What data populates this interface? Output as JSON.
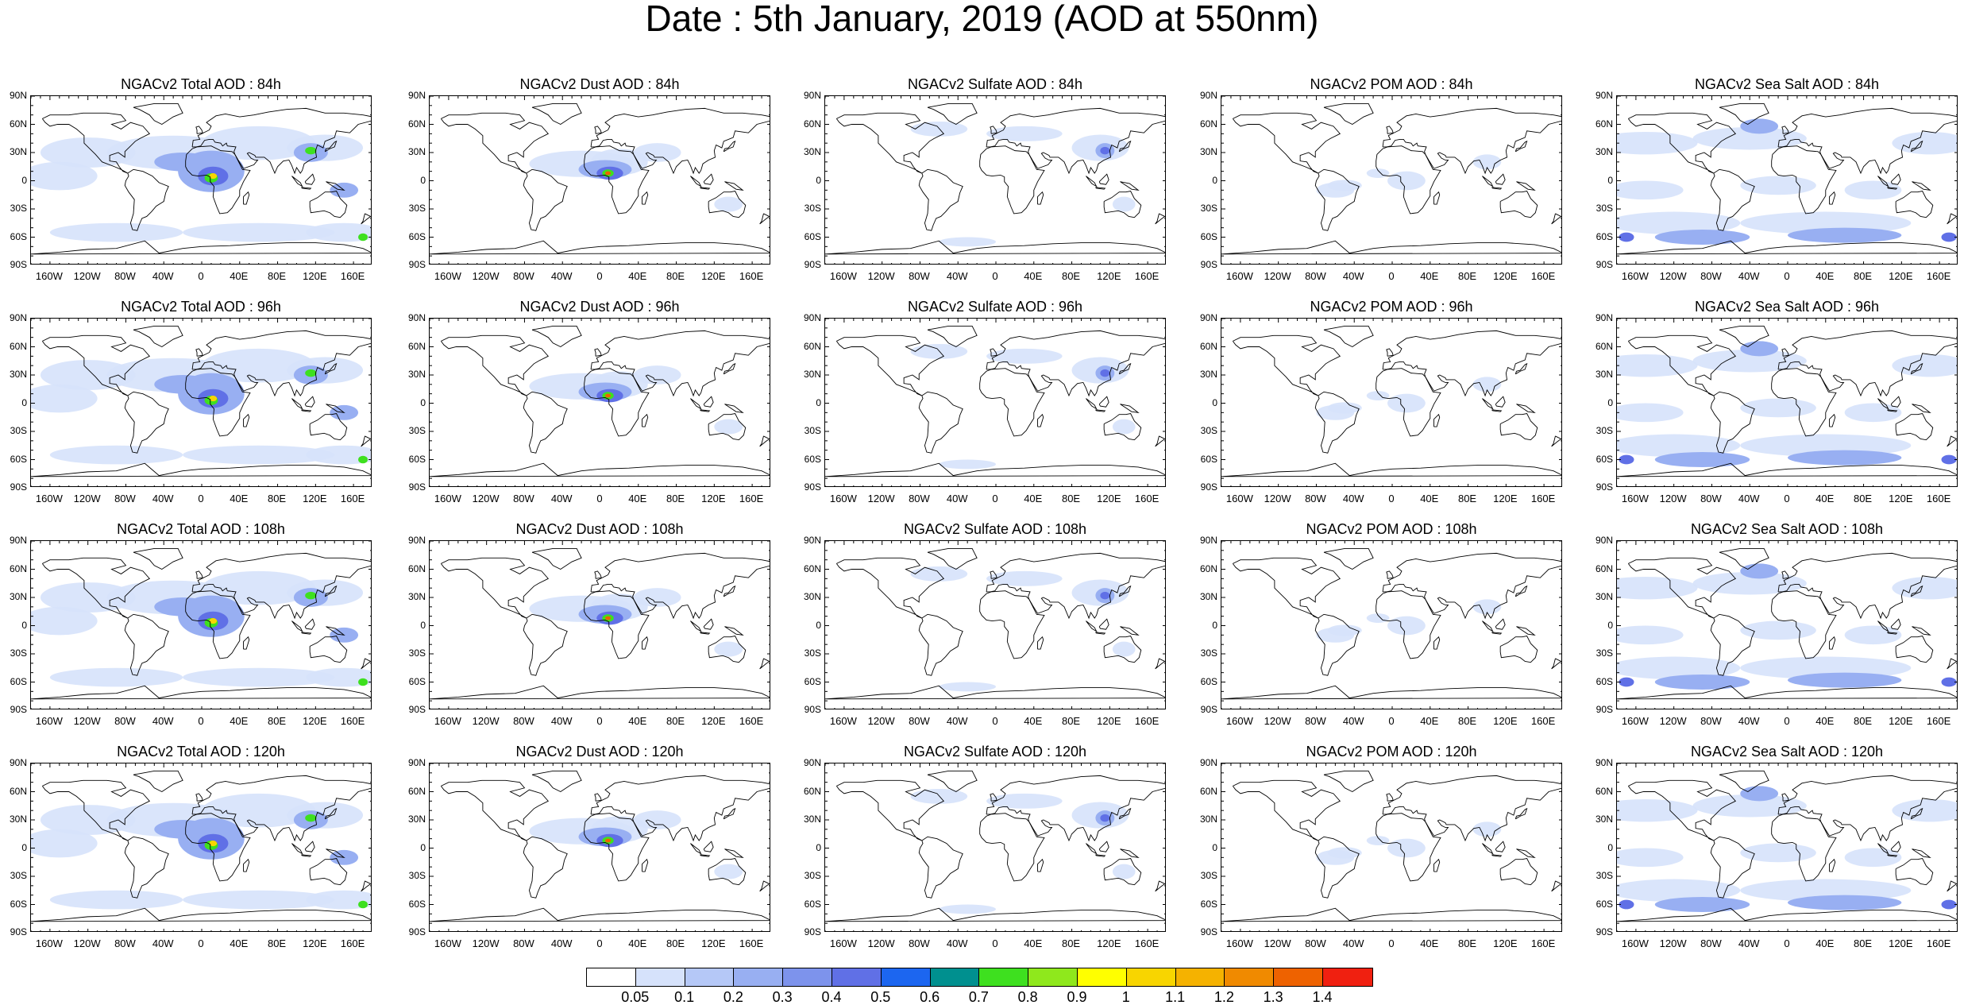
{
  "title": "Date : 5th January, 2019 (AOD at 550nm)",
  "panels": [
    [
      "NGACv2 Total AOD : 84h",
      "NGACv2 Dust AOD : 84h",
      "NGACv2 Sulfate AOD : 84h",
      "NGACv2 POM AOD : 84h",
      "NGACv2 Sea Salt AOD : 84h"
    ],
    [
      "NGACv2 Total AOD : 96h",
      "NGACv2 Dust AOD : 96h",
      "NGACv2 Sulfate AOD : 96h",
      "NGACv2 POM AOD : 96h",
      "NGACv2 Sea Salt AOD : 96h"
    ],
    [
      "NGACv2 Total AOD : 108h",
      "NGACv2 Dust AOD : 108h",
      "NGACv2 Sulfate AOD : 108h",
      "NGACv2 POM AOD : 108h",
      "NGACv2 Sea Salt AOD : 108h"
    ],
    [
      "NGACv2 Total AOD : 120h",
      "NGACv2 Dust AOD : 120h",
      "NGACv2 Sulfate AOD : 120h",
      "NGACv2 POM AOD : 120h",
      "NGACv2 Sea Salt  AOD : 120h"
    ]
  ],
  "lat_labels": [
    "90N",
    "60N",
    "30N",
    "0",
    "30S",
    "60S",
    "90S"
  ],
  "lon_labels": [
    "160W",
    "120W",
    "80W",
    "40W",
    "0",
    "40E",
    "80E",
    "120E",
    "160E"
  ],
  "colorbar": {
    "labels": [
      "0.05",
      "0.1",
      "0.2",
      "0.3",
      "0.4",
      "0.5",
      "0.6",
      "0.7",
      "0.8",
      "0.9",
      "1",
      "1.1",
      "1.2",
      "1.3",
      "1.4"
    ],
    "colors": [
      "#ffffff",
      "#d6e2fb",
      "#b5c8f7",
      "#98aff2",
      "#7d93ec",
      "#6070e6",
      "#1c66f0",
      "#00908f",
      "#3ee01f",
      "#8fe81c",
      "#c8f53c",
      "#ffff00",
      "#f8d500",
      "#f5b200",
      "#f08a00",
      "#ee6200",
      "#f02010"
    ]
  },
  "aod_colors": {
    "light": "#d6e2fb",
    "mid": "#98aff2",
    "strong": "#6070e6",
    "green": "#3ee01f",
    "yellow": "#f8d500",
    "orange": "#ee6200"
  }
}
